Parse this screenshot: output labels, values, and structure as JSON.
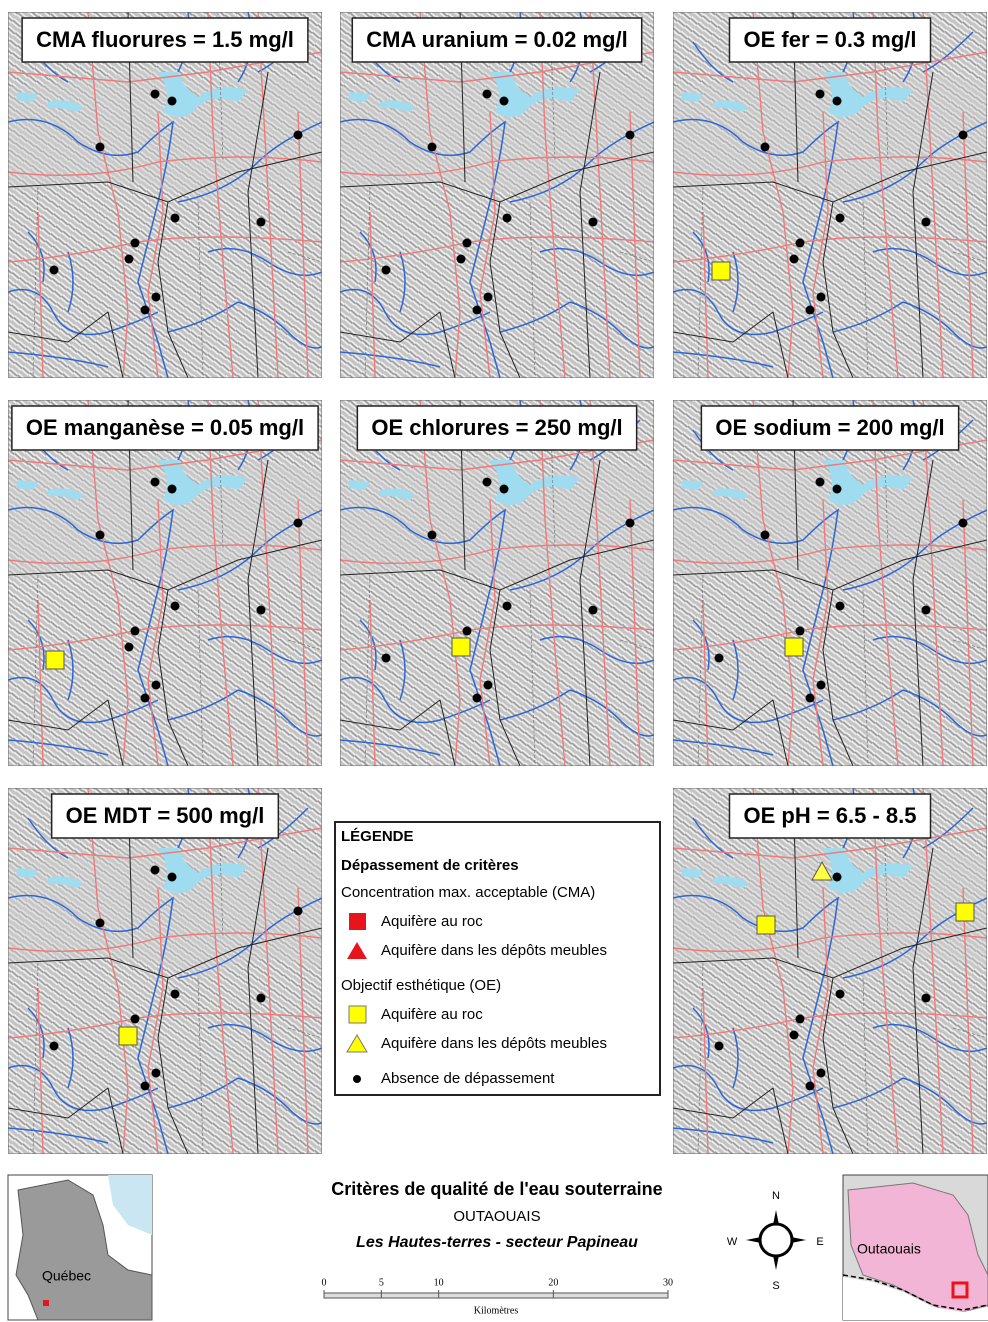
{
  "panels": [
    {
      "title": "CMA fluorures = 1.5 mg/l"
    },
    {
      "title": "CMA uranium = 0.02 mg/l"
    },
    {
      "title": "OE fer = 0.3 mg/l"
    },
    {
      "title": "OE manganèse = 0.05 mg/l"
    },
    {
      "title": "OE chlorures = 250 mg/l"
    },
    {
      "title": "OE sodium = 200 mg/l"
    },
    {
      "title": "OE MDT = 500 mg/l"
    },
    {
      "title": "OE pH = 6.5 - 8.5"
    }
  ],
  "legend": {
    "title": "LÉGENDE",
    "heading": "Dépassement de critères",
    "groups": [
      {
        "title": "Concentration max. acceptable (CMA)",
        "items": [
          "Aquifère au roc",
          "Aquifère dans les dépôts meubles"
        ]
      },
      {
        "title": "Objectif esthétique (OE)",
        "items": [
          "Aquifère au roc",
          "Aquifère dans les dépôts meubles"
        ]
      }
    ],
    "none": "Absence de dépassement"
  },
  "title": {
    "main": "Critères de qualité de l'eau souterraine",
    "region": "OUTAOUAIS",
    "sector": "Les Hautes-terres - secteur Papineau"
  },
  "scale": {
    "ticks": [
      0,
      5,
      10,
      20,
      30
    ],
    "unit": "Kilomètres"
  },
  "compass": {
    "n": "N",
    "s": "S",
    "e": "E",
    "w": "W"
  },
  "insets": {
    "quebec": "Québec",
    "outaouais": "Outaouais"
  }
}
